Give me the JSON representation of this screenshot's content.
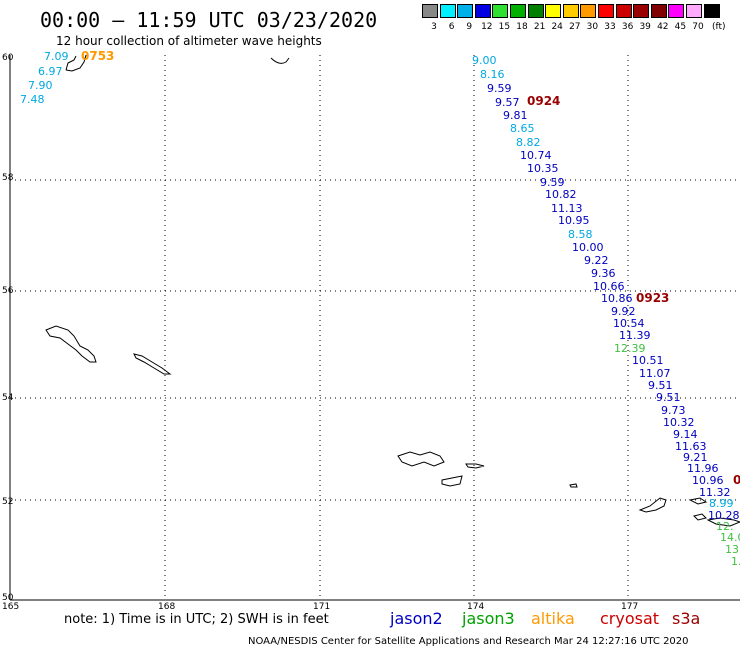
{
  "header": {
    "title": "00:00 — 11:59 UTC 03/23/2020",
    "subtitle": "12 hour collection of altimeter wave heights"
  },
  "legend": {
    "unit": "(ft)",
    "items": [
      {
        "label": "3",
        "color": "#888888"
      },
      {
        "label": "6",
        "color": "#00f0ff"
      },
      {
        "label": "9",
        "color": "#00b0e8"
      },
      {
        "label": "12",
        "color": "#0000e0"
      },
      {
        "label": "15",
        "color": "#30e030"
      },
      {
        "label": "18",
        "color": "#00b000"
      },
      {
        "label": "21",
        "color": "#008000"
      },
      {
        "label": "24",
        "color": "#ffff00"
      },
      {
        "label": "27",
        "color": "#ffcc00"
      },
      {
        "label": "30",
        "color": "#ff9900"
      },
      {
        "label": "33",
        "color": "#ff0000"
      },
      {
        "label": "36",
        "color": "#cc0000"
      },
      {
        "label": "39",
        "color": "#990000"
      },
      {
        "label": "42",
        "color": "#800000"
      },
      {
        "label": "45",
        "color": "#ff00ff"
      },
      {
        "label": "70",
        "color": "#ffaaff"
      },
      {
        "label": "",
        "color": "#000000"
      }
    ]
  },
  "map": {
    "lat_labels": [
      "60",
      "58",
      "56",
      "54",
      "52",
      "50"
    ],
    "lon_labels": [
      "165",
      "168",
      "171",
      "174",
      "177"
    ],
    "colors": {
      "jason2": "#0000c0",
      "jason3": "#00a000",
      "altika": "#ff9900",
      "cryosat": "#cc0000",
      "s3a": "#990000",
      "light": "#00a8e0",
      "green": "#40c040"
    }
  },
  "observations": [
    {
      "text": "7.09",
      "color": "#00a8e0"
    },
    {
      "text": "6.97",
      "color": "#00a8e0"
    },
    {
      "text": "7.90",
      "color": "#00a8e0"
    },
    {
      "text": "7.48",
      "color": "#00a8e0"
    },
    {
      "text": "9.00",
      "color": "#00a8e0"
    },
    {
      "text": "8.16",
      "color": "#00a8e0"
    },
    {
      "text": "9.59",
      "color": "#0000c0"
    },
    {
      "text": "9.57",
      "color": "#0000c0"
    },
    {
      "text": "9.81",
      "color": "#0000c0"
    },
    {
      "text": "8.65",
      "color": "#00a8e0"
    },
    {
      "text": "8.82",
      "color": "#00a8e0"
    },
    {
      "text": "10.74",
      "color": "#0000c0"
    },
    {
      "text": "10.35",
      "color": "#0000c0"
    },
    {
      "text": "9.59",
      "color": "#0000c0"
    },
    {
      "text": "10.82",
      "color": "#0000c0"
    },
    {
      "text": "11.13",
      "color": "#0000c0"
    },
    {
      "text": "10.95",
      "color": "#0000c0"
    },
    {
      "text": "8.58",
      "color": "#00a8e0"
    },
    {
      "text": "10.00",
      "color": "#0000c0"
    },
    {
      "text": "9.22",
      "color": "#0000c0"
    },
    {
      "text": "9.36",
      "color": "#0000c0"
    },
    {
      "text": "10.66",
      "color": "#0000c0"
    },
    {
      "text": "10.86",
      "color": "#0000c0"
    },
    {
      "text": "9.92",
      "color": "#0000c0"
    },
    {
      "text": "10.54",
      "color": "#0000c0"
    },
    {
      "text": "11.39",
      "color": "#0000c0"
    },
    {
      "text": "12.39",
      "color": "#40c040"
    },
    {
      "text": "10.51",
      "color": "#0000c0"
    },
    {
      "text": "11.07",
      "color": "#0000c0"
    },
    {
      "text": "9.51",
      "color": "#0000c0"
    },
    {
      "text": "9.51",
      "color": "#0000c0"
    },
    {
      "text": "9.73",
      "color": "#0000c0"
    },
    {
      "text": "10.32",
      "color": "#0000c0"
    },
    {
      "text": "9.14",
      "color": "#0000c0"
    },
    {
      "text": "11.63",
      "color": "#0000c0"
    },
    {
      "text": "9.21",
      "color": "#0000c0"
    },
    {
      "text": "11.96",
      "color": "#0000c0"
    },
    {
      "text": "10.96",
      "color": "#0000c0"
    },
    {
      "text": "11.32",
      "color": "#0000c0"
    },
    {
      "text": "8.99",
      "color": "#00a8e0"
    },
    {
      "text": "10.28",
      "color": "#0000c0"
    },
    {
      "text": "12.",
      "color": "#40c040"
    },
    {
      "text": "14.0",
      "color": "#40c040"
    },
    {
      "text": "13",
      "color": "#40c040"
    },
    {
      "text": "1.",
      "color": "#40c040"
    }
  ],
  "time_labels": [
    {
      "text": "0753",
      "color": "#ff9900"
    },
    {
      "text": "0924",
      "color": "#990000"
    },
    {
      "text": "0923",
      "color": "#990000"
    },
    {
      "text": "0",
      "color": "#990000"
    }
  ],
  "footer": {
    "note": "note: 1) Time is in UTC; 2) SWH is in feet",
    "satellites": [
      {
        "name": "jason2",
        "color": "#0000c0"
      },
      {
        "name": "jason3",
        "color": "#00a000"
      },
      {
        "name": "altika",
        "color": "#ff9900"
      },
      {
        "name": "cryosat",
        "color": "#cc0000"
      },
      {
        "name": "s3a",
        "color": "#990000"
      }
    ],
    "credit": "NOAA/NESDIS Center for Satellite Applications and Research    Mar 24 12:27:16 UTC 2020"
  }
}
